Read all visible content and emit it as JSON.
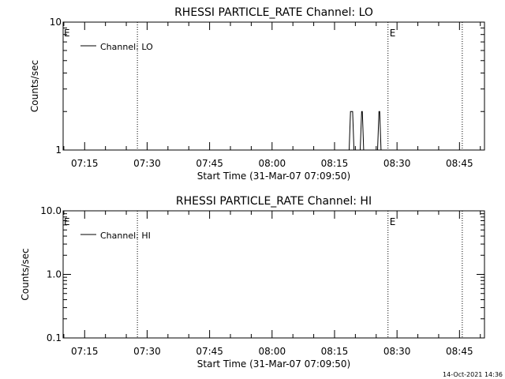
{
  "timestamp": "14-Oct-2021 14:36",
  "chart_data": [
    {
      "type": "line",
      "title": "RHESSI PARTICLE_RATE Channel: LO",
      "xlabel": "Start Time (31-Mar-07 07:09:50)",
      "ylabel": "Counts/sec",
      "yscale": "log",
      "ylim": [
        1,
        10
      ],
      "ytick_labels": [
        "1",
        "10"
      ],
      "xlim": [
        "07:09:50",
        "08:51:00"
      ],
      "xtick_labels": [
        "07:15",
        "07:30",
        "07:45",
        "08:00",
        "08:15",
        "08:30",
        "08:45"
      ],
      "grid": false,
      "legend": {
        "position": "top-left",
        "entries": [
          "Channel: LO"
        ]
      },
      "markers": [
        {
          "time": "07:27:40",
          "label": ""
        },
        {
          "time": "08:27:50",
          "label": "E"
        },
        {
          "time": "08:45:40",
          "label": ""
        }
      ],
      "edge_label": "E",
      "series": [
        {
          "name": "Channel: LO",
          "points": [
            [
              "07:09:50",
              1
            ],
            [
              "08:18:30",
              1
            ],
            [
              "08:18:50",
              2
            ],
            [
              "08:19:20",
              2
            ],
            [
              "08:19:40",
              1
            ],
            [
              "08:21:10",
              1
            ],
            [
              "08:21:30",
              2
            ],
            [
              "08:21:40",
              2
            ],
            [
              "08:22:00",
              1
            ],
            [
              "08:25:20",
              1
            ],
            [
              "08:25:40",
              2
            ],
            [
              "08:25:50",
              2
            ],
            [
              "08:26:10",
              1
            ],
            [
              "08:51:00",
              1
            ]
          ]
        }
      ]
    },
    {
      "type": "line",
      "title": "RHESSI PARTICLE_RATE Channel: HI",
      "xlabel": "Start Time (31-Mar-07 07:09:50)",
      "ylabel": "Counts/sec",
      "yscale": "log",
      "ylim": [
        0.1,
        10
      ],
      "ytick_labels": [
        "0.1",
        "1.0",
        "10.0"
      ],
      "xlim": [
        "07:09:50",
        "08:51:00"
      ],
      "xtick_labels": [
        "07:15",
        "07:30",
        "07:45",
        "08:00",
        "08:15",
        "08:30",
        "08:45"
      ],
      "grid": false,
      "legend": {
        "position": "top-left",
        "entries": [
          "Channel: HI"
        ]
      },
      "markers": [
        {
          "time": "07:27:40",
          "label": ""
        },
        {
          "time": "08:27:50",
          "label": "E"
        },
        {
          "time": "08:45:40",
          "label": ""
        }
      ],
      "edge_label": "E",
      "series": [
        {
          "name": "Channel: HI",
          "points": []
        }
      ]
    }
  ]
}
